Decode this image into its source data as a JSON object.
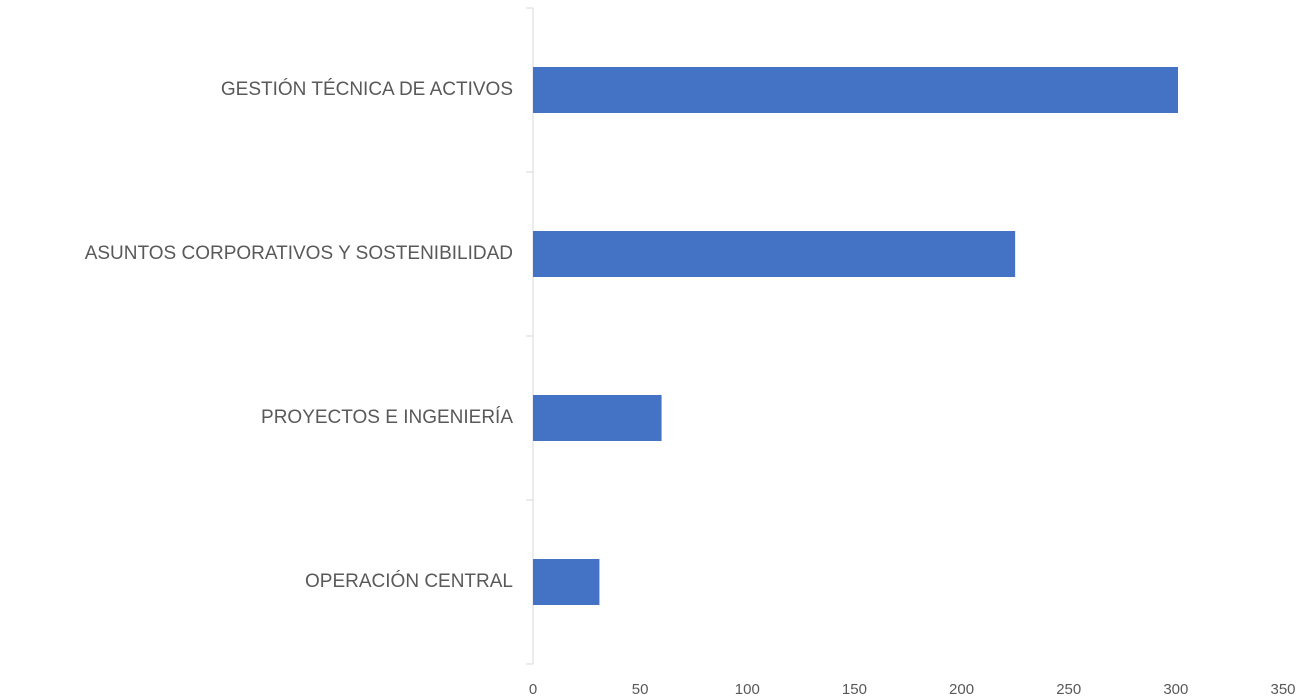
{
  "chart_data": {
    "type": "bar",
    "orientation": "horizontal",
    "categories": [
      "GESTIÓN TÉCNICA DE ACTIVOS",
      "ASUNTOS CORPORATIVOS Y SOSTENIBILIDAD",
      "PROYECTOS E INGENIERÍA",
      "OPERACIÓN CENTRAL"
    ],
    "values": [
      301,
      225,
      60,
      31
    ],
    "color": "#4472c4",
    "xlim": [
      0,
      350
    ],
    "xticks": [
      0,
      50,
      100,
      150,
      200,
      250,
      300,
      350
    ],
    "grid": false
  }
}
